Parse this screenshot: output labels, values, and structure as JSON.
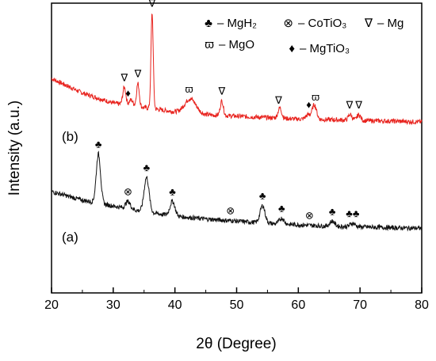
{
  "chart_data": {
    "type": "line",
    "xlabel": "2θ (Degree)",
    "ylabel": "Intensity (a.u.)",
    "xlim": [
      20,
      80
    ],
    "x_ticks": [
      "20",
      "30",
      "40",
      "50",
      "60",
      "70",
      "80"
    ],
    "grid": false,
    "legend": {
      "placement": "top-right",
      "entries": [
        {
          "symbol": "♣",
          "label": "– MgH₂"
        },
        {
          "symbol": "⊗",
          "label": "– CoTiO₃"
        },
        {
          "symbol": "∇",
          "label": "– Mg"
        },
        {
          "symbol": "ϖ",
          "label": "– MgO"
        },
        {
          "symbol": "♦",
          "label": "– MgTiO₃"
        }
      ]
    },
    "series": [
      {
        "name": "(b)",
        "color": "#e8231e",
        "baseline": [
          [
            20,
            0.74
          ],
          [
            25,
            0.69
          ],
          [
            30,
            0.655
          ],
          [
            35,
            0.64
          ],
          [
            40,
            0.625
          ],
          [
            45,
            0.615
          ],
          [
            50,
            0.61
          ],
          [
            55,
            0.605
          ],
          [
            60,
            0.6
          ],
          [
            65,
            0.598
          ],
          [
            70,
            0.595
          ],
          [
            75,
            0.593
          ],
          [
            80,
            0.59
          ]
        ],
        "peaks": [
          {
            "x": 31.8,
            "height": 0.06,
            "width": 0.25
          },
          {
            "x": 32.9,
            "height": 0.02,
            "width": 0.3
          },
          {
            "x": 34.0,
            "height": 0.08,
            "width": 0.22
          },
          {
            "x": 36.3,
            "height": 0.33,
            "width": 0.18
          },
          {
            "x": 42.5,
            "height": 0.05,
            "width": 0.9
          },
          {
            "x": 47.6,
            "height": 0.05,
            "width": 0.25
          },
          {
            "x": 57.0,
            "height": 0.035,
            "width": 0.3
          },
          {
            "x": 61.6,
            "height": 0.015,
            "width": 0.4
          },
          {
            "x": 62.6,
            "height": 0.05,
            "width": 0.35
          },
          {
            "x": 68.4,
            "height": 0.02,
            "width": 0.3
          },
          {
            "x": 69.8,
            "height": 0.02,
            "width": 0.3
          }
        ],
        "annotations": [
          {
            "x": 31.8,
            "symbol": "∇"
          },
          {
            "x": 32.4,
            "symbol": "♦"
          },
          {
            "x": 34.0,
            "symbol": "∇"
          },
          {
            "x": 36.3,
            "symbol": "∇"
          },
          {
            "x": 42.3,
            "symbol": "ϖ"
          },
          {
            "x": 47.6,
            "symbol": "∇"
          },
          {
            "x": 56.8,
            "symbol": "∇"
          },
          {
            "x": 61.7,
            "symbol": "♦"
          },
          {
            "x": 62.8,
            "symbol": "ϖ"
          },
          {
            "x": 68.3,
            "symbol": "∇"
          },
          {
            "x": 69.8,
            "symbol": "∇"
          }
        ]
      },
      {
        "name": "(a)",
        "color": "#111111",
        "baseline": [
          [
            20,
            0.35
          ],
          [
            25,
            0.32
          ],
          [
            30,
            0.3
          ],
          [
            35,
            0.28
          ],
          [
            40,
            0.265
          ],
          [
            45,
            0.255
          ],
          [
            50,
            0.248
          ],
          [
            55,
            0.24
          ],
          [
            60,
            0.235
          ],
          [
            65,
            0.23
          ],
          [
            70,
            0.228
          ],
          [
            75,
            0.225
          ],
          [
            80,
            0.223
          ]
        ],
        "peaks": [
          {
            "x": 27.6,
            "height": 0.17,
            "width": 0.35
          },
          {
            "x": 32.4,
            "height": 0.025,
            "width": 0.4
          },
          {
            "x": 35.4,
            "height": 0.12,
            "width": 0.4
          },
          {
            "x": 39.6,
            "height": 0.05,
            "width": 0.4
          },
          {
            "x": 54.2,
            "height": 0.06,
            "width": 0.4
          },
          {
            "x": 57.3,
            "height": 0.02,
            "width": 0.4
          },
          {
            "x": 65.5,
            "height": 0.018,
            "width": 0.4
          },
          {
            "x": 68.8,
            "height": 0.012,
            "width": 0.4
          }
        ],
        "annotations": [
          {
            "x": 27.6,
            "symbol": "♣"
          },
          {
            "x": 32.4,
            "symbol": "⊗"
          },
          {
            "x": 35.4,
            "symbol": "♣"
          },
          {
            "x": 39.6,
            "symbol": "♣"
          },
          {
            "x": 49.0,
            "symbol": "⊗"
          },
          {
            "x": 54.2,
            "symbol": "♣"
          },
          {
            "x": 57.3,
            "symbol": "♣"
          },
          {
            "x": 61.8,
            "symbol": "⊗"
          },
          {
            "x": 65.5,
            "symbol": "♣"
          },
          {
            "x": 68.8,
            "symbol": "♣♣"
          }
        ]
      }
    ]
  }
}
